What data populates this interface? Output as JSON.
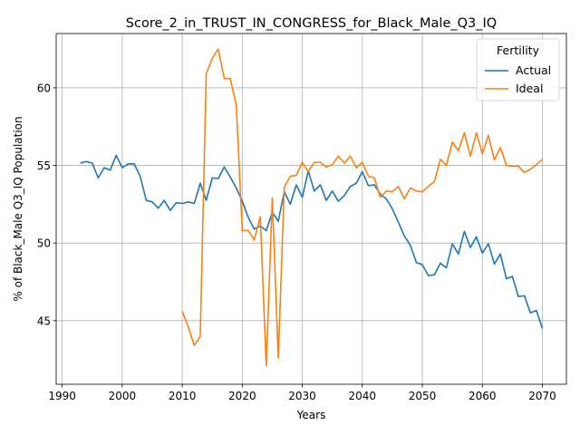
{
  "chart_data": {
    "type": "line",
    "title": "Score_2_in_TRUST_IN_CONGRESS_for_Black_Male_Q3_IQ",
    "xlabel": "Years",
    "ylabel": "% of Black_Male Q3_IQ Population",
    "xlim": [
      1989,
      2074
    ],
    "ylim": [
      40.9,
      63.5
    ],
    "xticks": [
      1990,
      2000,
      2010,
      2020,
      2030,
      2040,
      2050,
      2060,
      2070
    ],
    "yticks": [
      45,
      50,
      55,
      60
    ],
    "grid": true,
    "legend": {
      "title": "Fertility",
      "position": "top-right"
    },
    "series": [
      {
        "name": "Actual",
        "color": "#1f77b4",
        "x": [
          1993,
          1994,
          1995,
          1996,
          1997,
          1998,
          1999,
          2000,
          2001,
          2002,
          2003,
          2004,
          2005,
          2006,
          2007,
          2008,
          2009,
          2010,
          2011,
          2012,
          2013,
          2014,
          2015,
          2016,
          2017,
          2018,
          2019,
          2020,
          2021,
          2022,
          2023,
          2024,
          2025,
          2026,
          2027,
          2028,
          2029,
          2030,
          2031,
          2032,
          2033,
          2034,
          2035,
          2036,
          2037,
          2038,
          2039,
          2040,
          2041,
          2042,
          2043,
          2044,
          2045,
          2046,
          2047,
          2048,
          2049,
          2050,
          2051,
          2052,
          2053,
          2054,
          2055,
          2056,
          2057,
          2058,
          2059,
          2060,
          2061,
          2062,
          2063,
          2064,
          2065,
          2066,
          2067,
          2068,
          2069,
          2070
        ],
        "values": [
          55.15,
          55.25,
          55.15,
          54.2,
          54.85,
          54.7,
          55.65,
          54.85,
          55.1,
          55.1,
          54.3,
          52.75,
          52.65,
          52.25,
          52.75,
          52.1,
          52.6,
          52.55,
          52.65,
          52.55,
          53.85,
          52.75,
          54.2,
          54.15,
          54.9,
          54.25,
          53.55,
          52.7,
          51.65,
          50.9,
          51.1,
          50.8,
          52.0,
          51.4,
          53.3,
          52.5,
          53.75,
          52.95,
          54.65,
          53.35,
          53.75,
          52.75,
          53.35,
          52.7,
          53.05,
          53.65,
          53.85,
          54.6,
          53.7,
          53.75,
          53.15,
          52.85,
          52.2,
          51.35,
          50.45,
          49.85,
          48.75,
          48.6,
          47.9,
          47.95,
          48.7,
          48.4,
          49.95,
          49.3,
          50.75,
          49.7,
          50.4,
          49.35,
          49.95,
          48.65,
          49.3,
          47.7,
          47.85,
          46.55,
          46.6,
          45.5,
          45.65,
          44.5
        ]
      },
      {
        "name": "Ideal",
        "color": "#ff7f0e",
        "x": [
          2010,
          2011,
          2012,
          2013,
          2014,
          2015,
          2016,
          2017,
          2018,
          2019,
          2020,
          2021,
          2022,
          2023,
          2024,
          2025,
          2026,
          2027,
          2028,
          2029,
          2030,
          2031,
          2032,
          2033,
          2034,
          2035,
          2036,
          2037,
          2038,
          2039,
          2040,
          2041,
          2042,
          2043,
          2044,
          2045,
          2046,
          2047,
          2048,
          2049,
          2050,
          2051,
          2052,
          2053,
          2054,
          2055,
          2056,
          2057,
          2058,
          2059,
          2060,
          2061,
          2062,
          2063,
          2064,
          2065,
          2066,
          2067,
          2068,
          2069,
          2070
        ],
        "values": [
          45.6,
          44.6,
          43.4,
          44.0,
          60.9,
          61.9,
          62.5,
          60.6,
          60.6,
          58.9,
          50.8,
          50.8,
          50.2,
          51.7,
          42.1,
          52.9,
          42.6,
          53.6,
          54.3,
          54.35,
          55.2,
          54.6,
          55.2,
          55.2,
          54.9,
          55.05,
          55.6,
          55.15,
          55.6,
          54.85,
          55.2,
          54.3,
          54.2,
          52.95,
          53.35,
          53.3,
          53.65,
          52.85,
          53.55,
          53.35,
          53.3,
          53.65,
          53.95,
          55.4,
          55.0,
          56.5,
          55.95,
          57.1,
          55.6,
          57.1,
          55.75,
          56.95,
          55.35,
          56.15,
          55.0,
          54.95,
          54.95,
          54.55,
          54.75,
          55.05,
          55.4
        ]
      }
    ]
  }
}
